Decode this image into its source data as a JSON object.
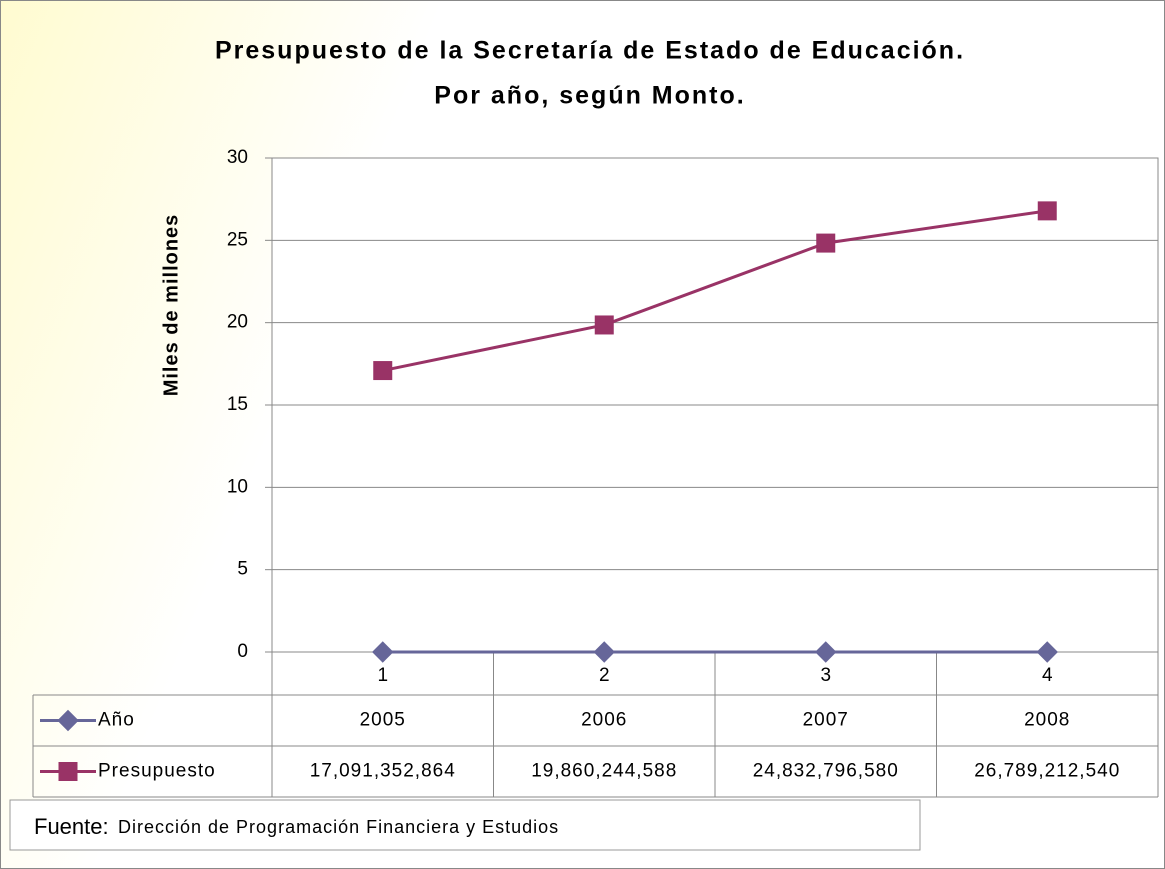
{
  "chart_data": {
    "type": "line",
    "title": "Presupuesto de la Secretaría de Estado de Educación.",
    "subtitle": "Por año, según Monto.",
    "y_label": "Miles de millones",
    "categories": [
      "1",
      "2",
      "3",
      "4"
    ],
    "series": [
      {
        "name": "Año",
        "color": "#666699",
        "marker": "diamond",
        "values": [
          2.005e-06,
          2.006e-06,
          2.007e-06,
          2.008e-06
        ],
        "value_labels": [
          "2005",
          "2006",
          "2007",
          "2008"
        ]
      },
      {
        "name": "Presupuesto",
        "color": "#993366",
        "marker": "square",
        "values": [
          17.091352864,
          19.860244588,
          24.83279658,
          26.78921254
        ],
        "value_labels": [
          "17,091,352,864",
          "19,860,244,588",
          "24,832,796,580",
          "26,789,212,540"
        ]
      }
    ],
    "ylim": [
      0,
      30
    ],
    "yticks": [
      0,
      5,
      10,
      15,
      20,
      25,
      30
    ],
    "grid": true,
    "source_label": "Fuente:",
    "source": "Dirección de Programación Financiera y Estudios"
  }
}
